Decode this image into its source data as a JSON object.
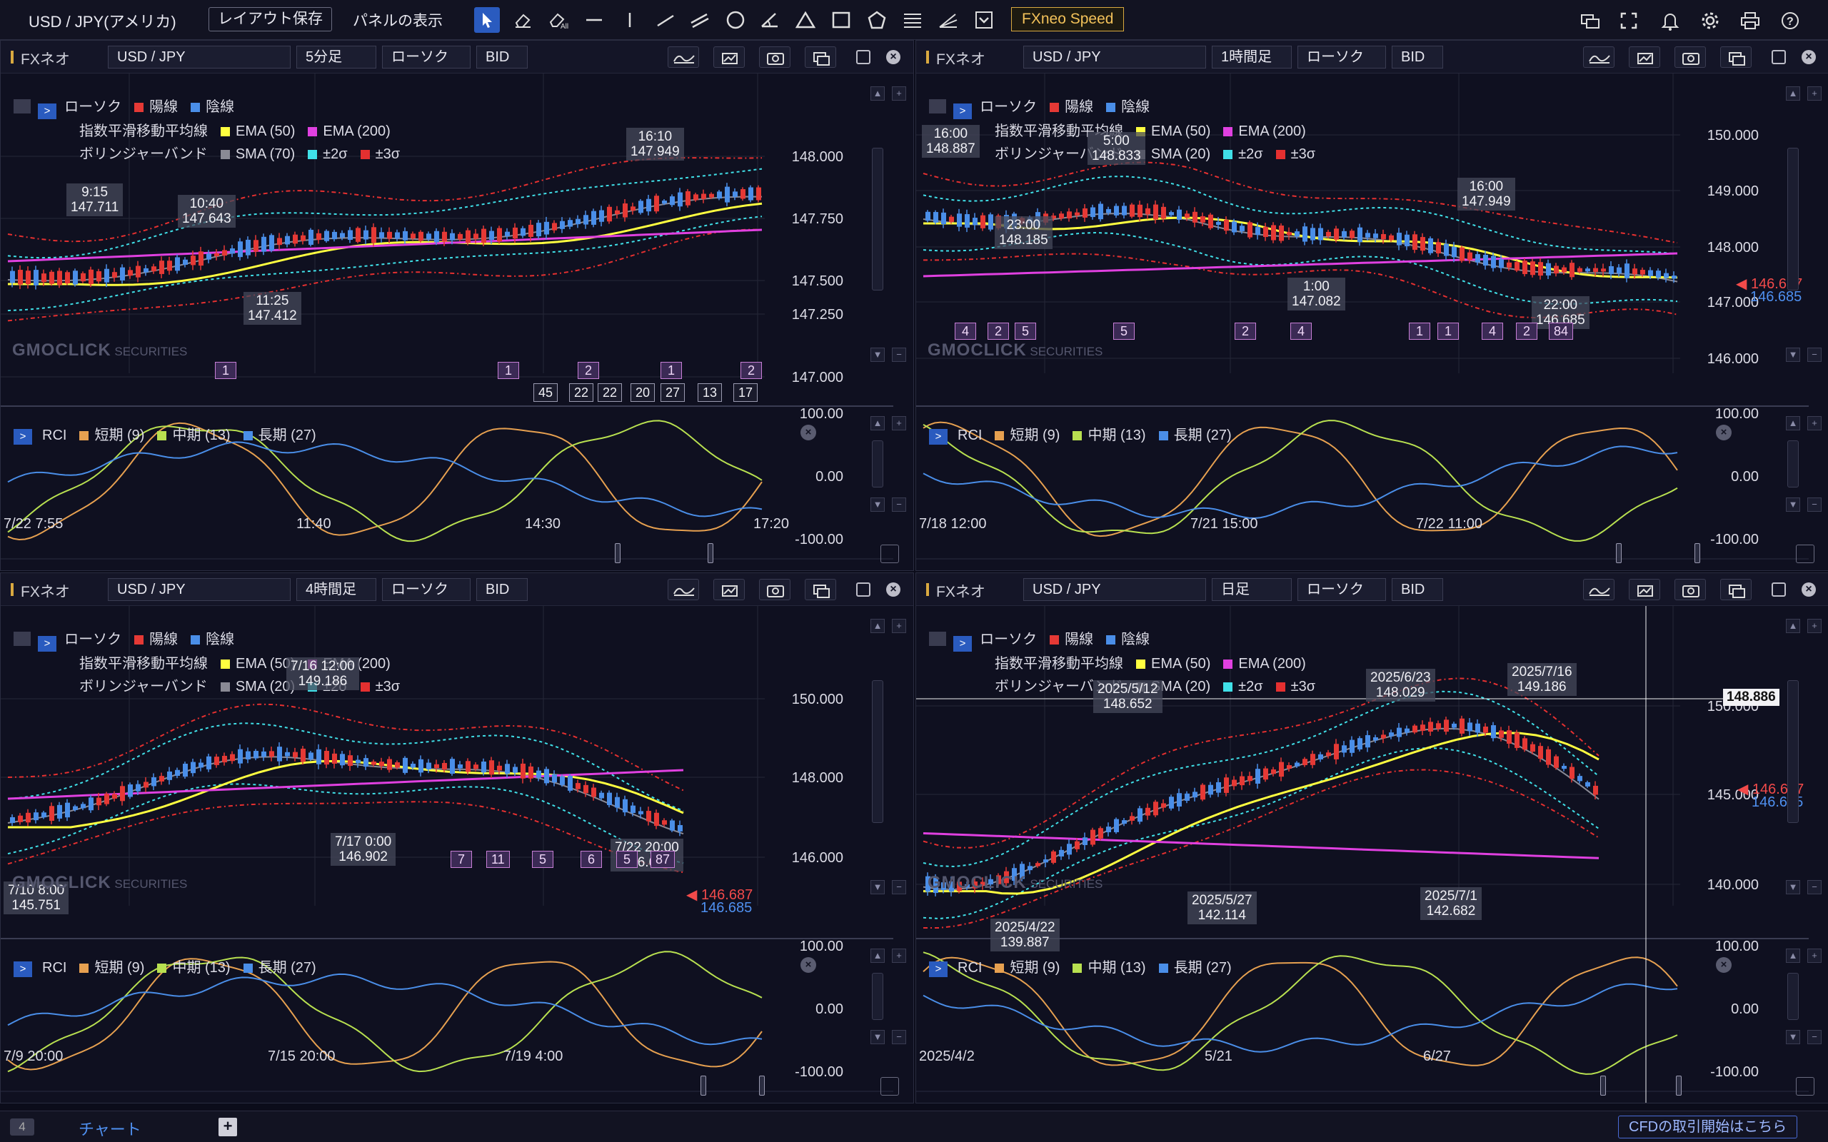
{
  "app": {
    "instrument_title": "USD / JPY(アメリカ)",
    "layout_save": "レイアウト保存",
    "panel_display": "パネルの表示",
    "speed": "FXneo Speed"
  },
  "bottom": {
    "tab_count": "4",
    "tab_label": "チャート",
    "cfd": "CFDの取引開始はこちら"
  },
  "common": {
    "brand": "FXネオ",
    "price_type": "BID",
    "legend_row1": "ローソク",
    "up": "陽線",
    "down": "陰線",
    "legend_row2": "指数平滑移動平均線",
    "ema50": "EMA (50)",
    "ema200": "EMA (200)",
    "legend_row3": "ボリンジャーバンド",
    "sigma2": "±2σ",
    "sigma3": "±3σ",
    "rci": "RCI",
    "rci_short": "短期 (9)",
    "rci_mid": "中期 (13)",
    "rci_long": "長期 (27)",
    "watermark": "GMOCLICK",
    "watermark_sub": "SECURITIES",
    "rci_ticks": [
      "100.00",
      "0.00",
      "-100.00"
    ],
    "cur_red": "146.687",
    "cur_blue": "146.685"
  },
  "panels": [
    {
      "pair": "USD / JPY",
      "timeframe": "5分足",
      "chart_type": "ローソク",
      "sma": "SMA (70)",
      "price_ticks": [
        "148.000",
        "147.750",
        "147.500",
        "147.250",
        "147.000"
      ],
      "time_labels": [
        "7/22 7:55",
        "11:40",
        "14:30",
        "17:20"
      ],
      "callouts": [
        {
          "time": "16:10",
          "price": "147.949"
        },
        {
          "time": "9:15",
          "price": "147.711"
        },
        {
          "time": "10:40",
          "price": "147.643"
        },
        {
          "time": "11:25",
          "price": "147.412"
        }
      ],
      "badges": [
        "1",
        "1",
        "2",
        "1",
        "2"
      ],
      "numboxes": [
        "45",
        "22",
        "22",
        "20",
        "27",
        "13",
        "17"
      ]
    },
    {
      "pair": "USD / JPY",
      "timeframe": "1時間足",
      "chart_type": "ローソク",
      "sma": "SMA (20)",
      "price_ticks": [
        "150.000",
        "149.000",
        "148.000",
        "147.000",
        "146.000"
      ],
      "time_labels": [
        "7/18 12:00",
        "7/21 15:00",
        "7/22 11:00"
      ],
      "callouts": [
        {
          "time": "16:00",
          "price": "148.887"
        },
        {
          "time": "5:00",
          "price": "148.833"
        },
        {
          "time": "16:00",
          "price": "147.949"
        },
        {
          "time": "23:00",
          "price": "148.185"
        },
        {
          "time": "1:00",
          "price": "147.082"
        },
        {
          "time": "22:00",
          "price": "146.685"
        }
      ],
      "badges": [
        "4",
        "2",
        "5",
        "5",
        "2",
        "4",
        "1",
        "1",
        "4",
        "2",
        "84"
      ]
    },
    {
      "pair": "USD / JPY",
      "timeframe": "4時間足",
      "chart_type": "ローソク",
      "sma": "SMA (20)",
      "price_ticks": [
        "150.000",
        "148.000",
        "146.000"
      ],
      "time_labels": [
        "7/9 20:00",
        "7/15 20:00",
        "7/19 4:00"
      ],
      "callouts": [
        {
          "time": "7/16 12:00",
          "price": "149.186"
        },
        {
          "time": "7/17 0:00",
          "price": "146.902"
        },
        {
          "time": "7/10 8:00",
          "price": "145.751"
        },
        {
          "time": "7/22 20:00",
          "price": "146.685"
        }
      ],
      "badges": [
        "7",
        "11",
        "5",
        "6",
        "5",
        "87"
      ]
    },
    {
      "pair": "USD / JPY",
      "timeframe": "日足",
      "chart_type": "ローソク",
      "sma": "SMA (20)",
      "price_ticks": [
        "150.000",
        "145.000",
        "140.000"
      ],
      "time_labels": [
        "2025/4/2",
        "5/21",
        "6/27"
      ],
      "crosshair_price": "148.886",
      "callouts": [
        {
          "time": "2025/7/16",
          "price": "149.186"
        },
        {
          "time": "2025/5/12",
          "price": "148.652"
        },
        {
          "time": "2025/6/23",
          "price": "148.029"
        },
        {
          "time": "2025/5/27",
          "price": "142.114"
        },
        {
          "time": "2025/7/1",
          "price": "142.682"
        },
        {
          "time": "2025/4/22",
          "price": "139.887"
        }
      ],
      "badges": []
    }
  ],
  "colors": {
    "up": "#e53935",
    "down": "#4a8ee8",
    "ema50": "#ffff40",
    "ema200": "#e040e0",
    "sma": "#8a8a95",
    "sigma2": "#40e0e8",
    "sigma3": "#e53030",
    "rci_short": "#e6a050",
    "rci_mid": "#b8e050",
    "rci_long": "#4a8ee8"
  }
}
